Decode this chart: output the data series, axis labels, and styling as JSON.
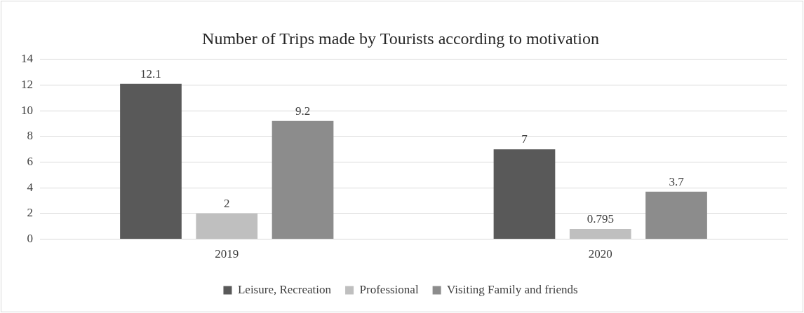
{
  "chart_data": {
    "type": "bar",
    "title": "Number of Trips made by Tourists according to motivation",
    "categories": [
      "2019",
      "2020"
    ],
    "series": [
      {
        "name": "Leisure, Recreation",
        "color": "#595959",
        "values": [
          12.1,
          7
        ]
      },
      {
        "name": "Professional",
        "color": "#bfbfbf",
        "values": [
          2,
          0.795
        ]
      },
      {
        "name": "Visiting Family and friends",
        "color": "#8c8c8c",
        "values": [
          9.2,
          3.7
        ]
      }
    ],
    "ylim": [
      0,
      14
    ],
    "yticks": [
      0,
      2,
      4,
      6,
      8,
      10,
      12,
      14
    ],
    "grid": "y",
    "legend": "bottom",
    "data_labels": true
  }
}
